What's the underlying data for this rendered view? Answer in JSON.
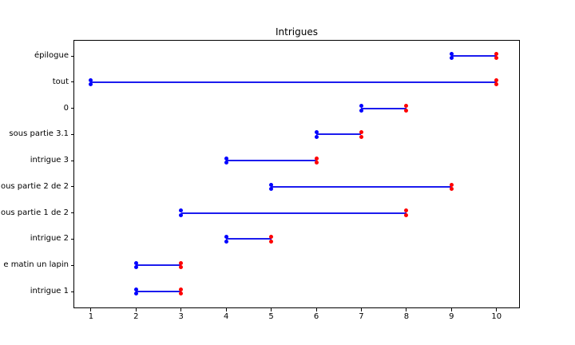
{
  "chart_data": {
    "type": "line",
    "variant": "dumbbell-range-gantt",
    "title": "Intrigues",
    "grid": false,
    "legend": null,
    "background_color": "#ffffff",
    "axis_color": "#000000",
    "text_color": "#000000",
    "x_ticks": [
      1,
      2,
      3,
      4,
      5,
      6,
      7,
      8,
      9,
      10
    ],
    "xlim": [
      0.63,
      10.5
    ],
    "row_order": "top-to-bottom",
    "rows": [
      {
        "label": "épilogue",
        "start": 9,
        "end": 10
      },
      {
        "label": "tout",
        "start": 1,
        "end": 10
      },
      {
        "label": "0",
        "start": 7,
        "end": 8
      },
      {
        "label": "sous partie 3.1",
        "start": 6,
        "end": 7
      },
      {
        "label": "intrigue 3",
        "start": 4,
        "end": 6
      },
      {
        "label": "ous partie 2 de 2",
        "start": 5,
        "end": 9
      },
      {
        "label": "ous partie 1 de 2",
        "start": 3,
        "end": 8
      },
      {
        "label": "intrigue 2",
        "start": 4,
        "end": 5
      },
      {
        "label": "e matin un lapin",
        "start": 2,
        "end": 3
      },
      {
        "label": "intrigue 1",
        "start": 2,
        "end": 3
      }
    ],
    "series": [
      {
        "name": "start",
        "marker": "circle",
        "color": "#0000ff",
        "values": [
          9,
          1,
          7,
          6,
          4,
          5,
          3,
          4,
          2,
          2
        ]
      },
      {
        "name": "end",
        "marker": "circle",
        "color": "#ff0000",
        "values": [
          10,
          10,
          8,
          7,
          6,
          9,
          8,
          5,
          3,
          3
        ]
      }
    ],
    "colors": {
      "start_dot": "#0000ff",
      "end_dot": "#ff0000",
      "line": "#1c1cee"
    }
  }
}
